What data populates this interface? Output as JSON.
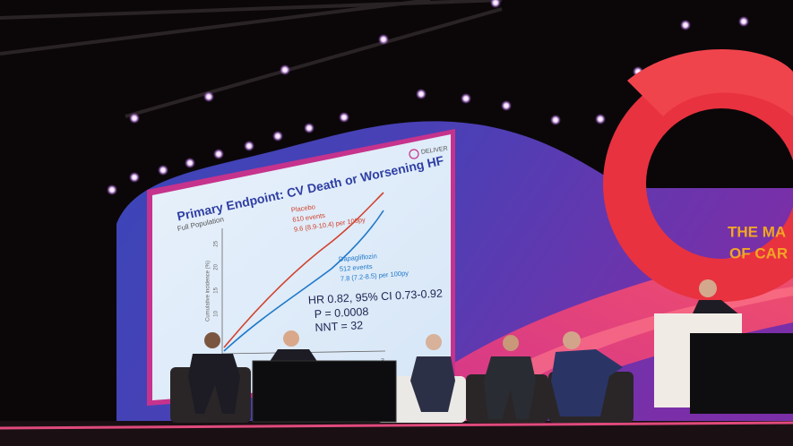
{
  "slide": {
    "title": "Primary Endpoint: CV Death or Worsening HF",
    "subtitle": "Full Population",
    "logo": "DELIVER",
    "y_axis_label": "Cumulative incidence (%)",
    "yticks": [
      "25",
      "20",
      "15",
      "10",
      "5"
    ],
    "xtick": "3",
    "placebo": {
      "name": "Placebo",
      "events": "610 events",
      "rate": "9.6 (8.9-10.4) per 100py"
    },
    "dapagliflozin": {
      "name": "Dapagliflozin",
      "events": "512 events",
      "rate": "7.8 (7.2-8.5) per 100py"
    },
    "stats": [
      "HR 0.82, 95% CI 0.73-0.92",
      "P = 0.0008",
      "NNT = 32"
    ]
  },
  "backdrop": {
    "lines": [
      "THE MA",
      "OF CAR"
    ]
  }
}
